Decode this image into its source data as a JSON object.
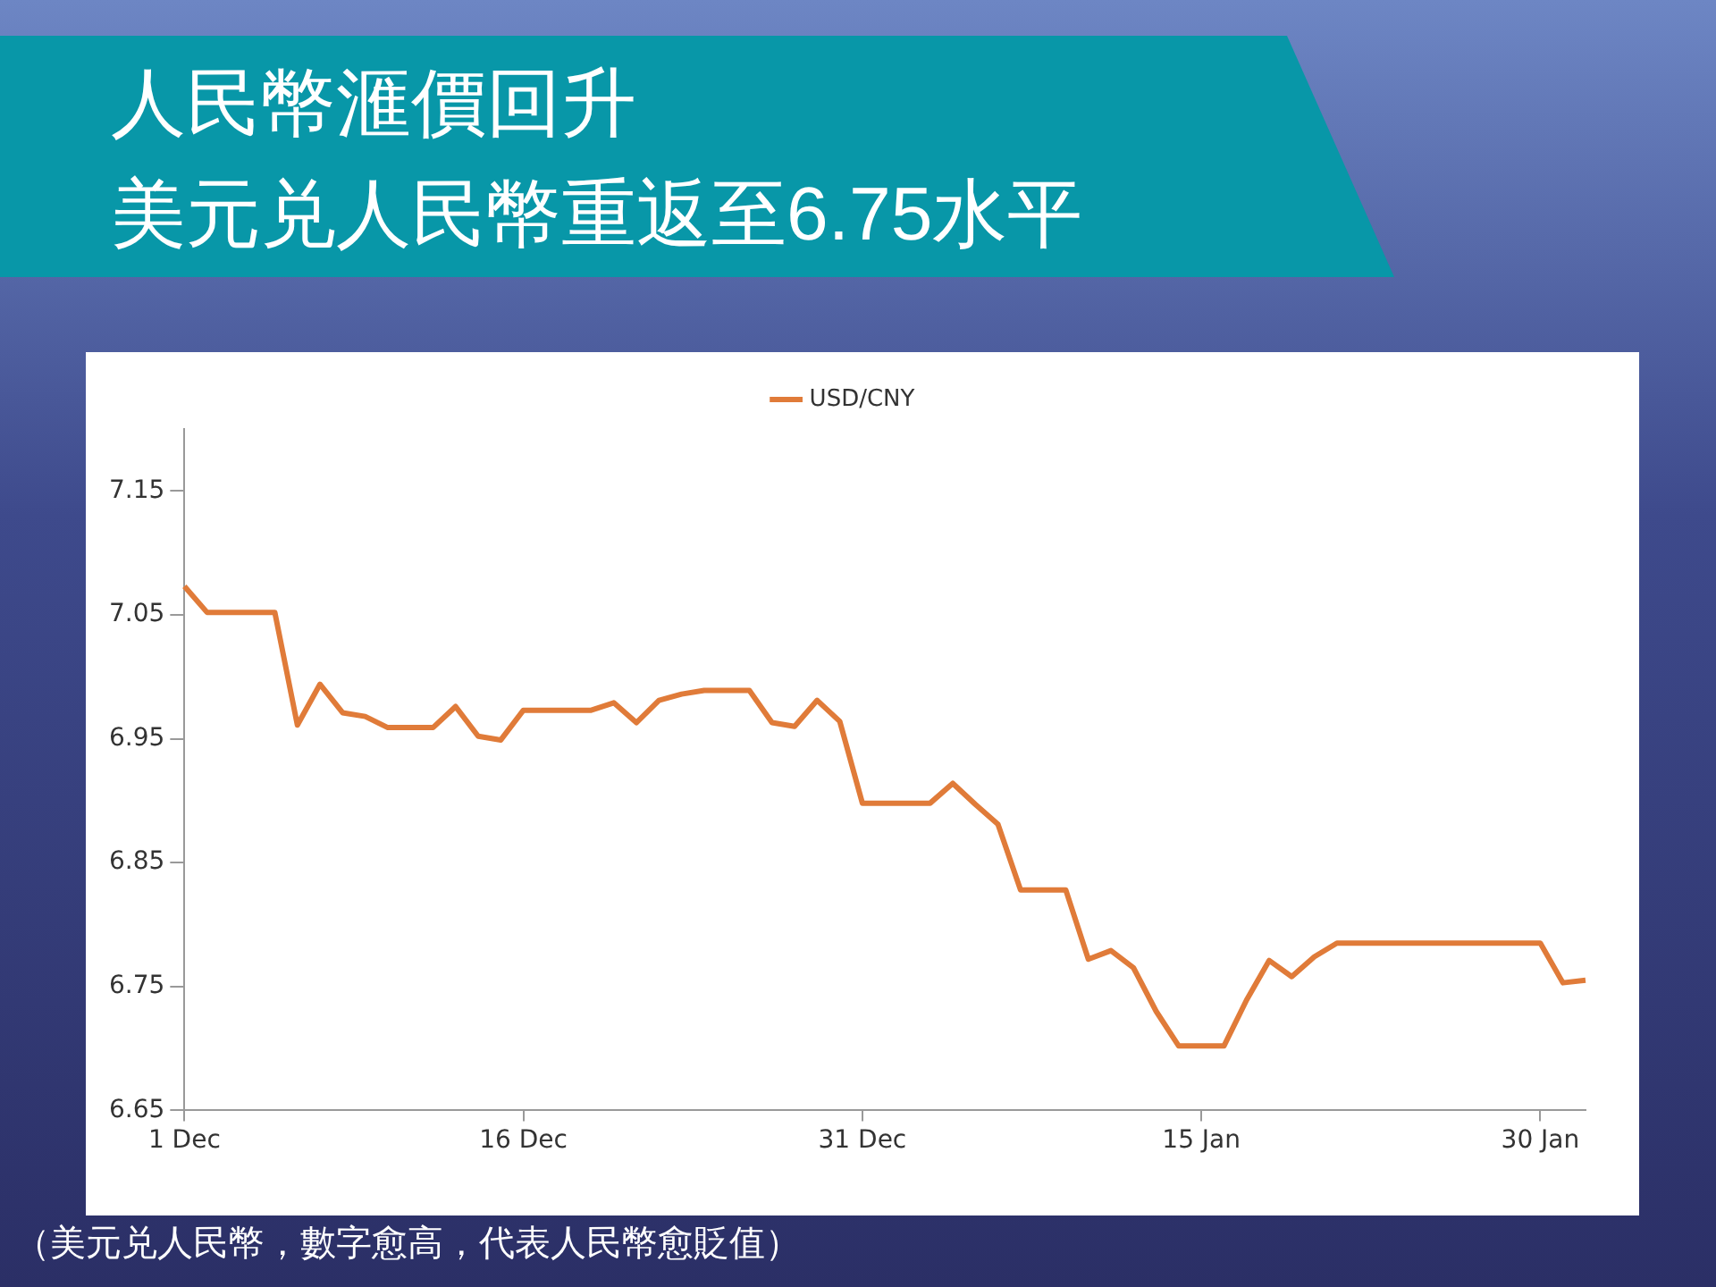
{
  "chart_data": {
    "type": "line",
    "title": "人民幣滙價回升",
    "subtitle": "美元兑人民幣重返至6.75水平",
    "annotations": [
      "（美元兑人民幣，數字愈高，代表人民幣愈貶值）"
    ],
    "categories": [
      "1 Dec",
      null,
      null,
      null,
      null,
      null,
      null,
      null,
      null,
      null,
      null,
      null,
      null,
      null,
      null,
      "16 Dec",
      null,
      null,
      null,
      null,
      null,
      null,
      null,
      null,
      null,
      null,
      null,
      null,
      null,
      null,
      "31 Dec",
      null,
      null,
      null,
      null,
      null,
      null,
      null,
      null,
      null,
      null,
      null,
      null,
      null,
      null,
      "15 Jan",
      null,
      null,
      null,
      null,
      null,
      null,
      null,
      null,
      null,
      null,
      null,
      null,
      null,
      null,
      "30 Jan",
      null,
      null
    ],
    "ylim": [
      6.65,
      7.2
    ],
    "yticks": [
      6.65,
      6.75,
      6.85,
      6.95,
      7.05,
      7.15
    ],
    "grid": false,
    "legend": "top",
    "marker": "none",
    "line_style": "solid",
    "series": [
      {
        "name": "USD/CNY",
        "color": "#e07b39",
        "values": [
          7.073,
          7.052,
          7.052,
          7.052,
          7.052,
          6.961,
          6.994,
          6.971,
          6.968,
          6.959,
          6.959,
          6.959,
          6.976,
          6.952,
          6.949,
          6.973,
          6.973,
          6.973,
          6.973,
          6.979,
          6.963,
          6.981,
          6.986,
          6.989,
          6.989,
          6.989,
          6.963,
          6.96,
          6.981,
          6.964,
          6.898,
          6.898,
          6.898,
          6.898,
          6.914,
          6.897,
          6.881,
          6.828,
          6.828,
          6.828,
          6.772,
          6.779,
          6.765,
          6.73,
          6.702,
          6.702,
          6.702,
          6.739,
          6.771,
          6.758,
          6.774,
          6.785,
          6.785,
          6.785,
          6.785,
          6.785,
          6.785,
          6.785,
          6.785,
          6.785,
          6.785,
          6.753,
          6.755
        ]
      }
    ]
  }
}
